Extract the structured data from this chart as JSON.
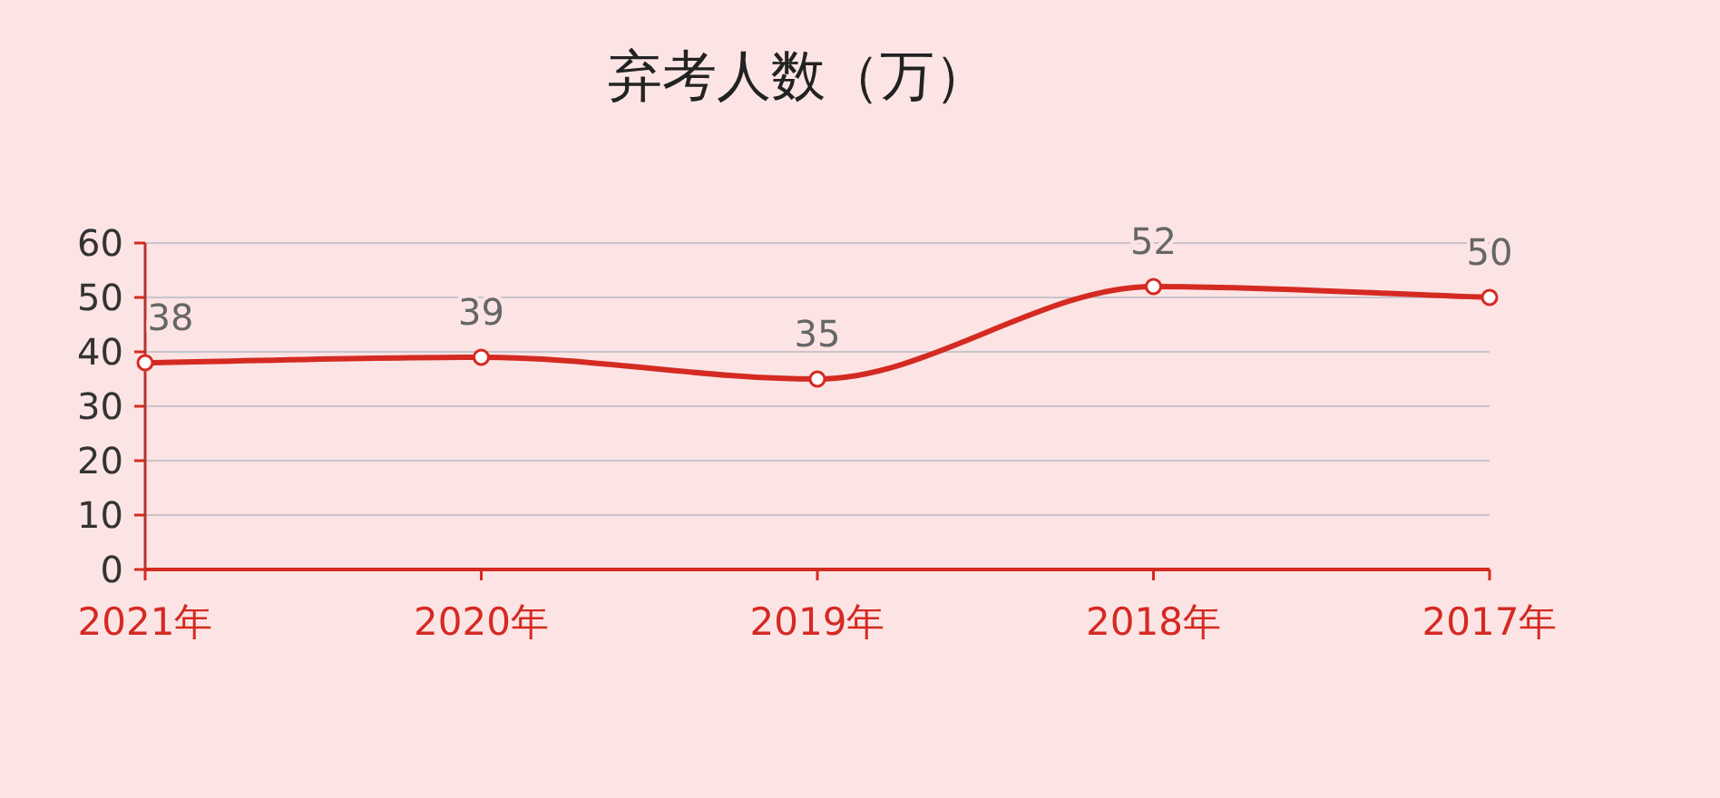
{
  "chart_data": {
    "type": "line",
    "title": "弃考人数（万）",
    "categories": [
      "2021年",
      "2020年",
      "2019年",
      "2018年",
      "2017年"
    ],
    "series": [
      {
        "color": "#d42a22",
        "values": [
          38,
          39,
          35,
          52,
          50
        ]
      }
    ],
    "ylim": [
      0,
      60
    ],
    "yticks": [
      0,
      10,
      20,
      30,
      40,
      50,
      60
    ],
    "grid": "y",
    "data_labels": true,
    "marker": "circle",
    "line_style": "solid"
  }
}
